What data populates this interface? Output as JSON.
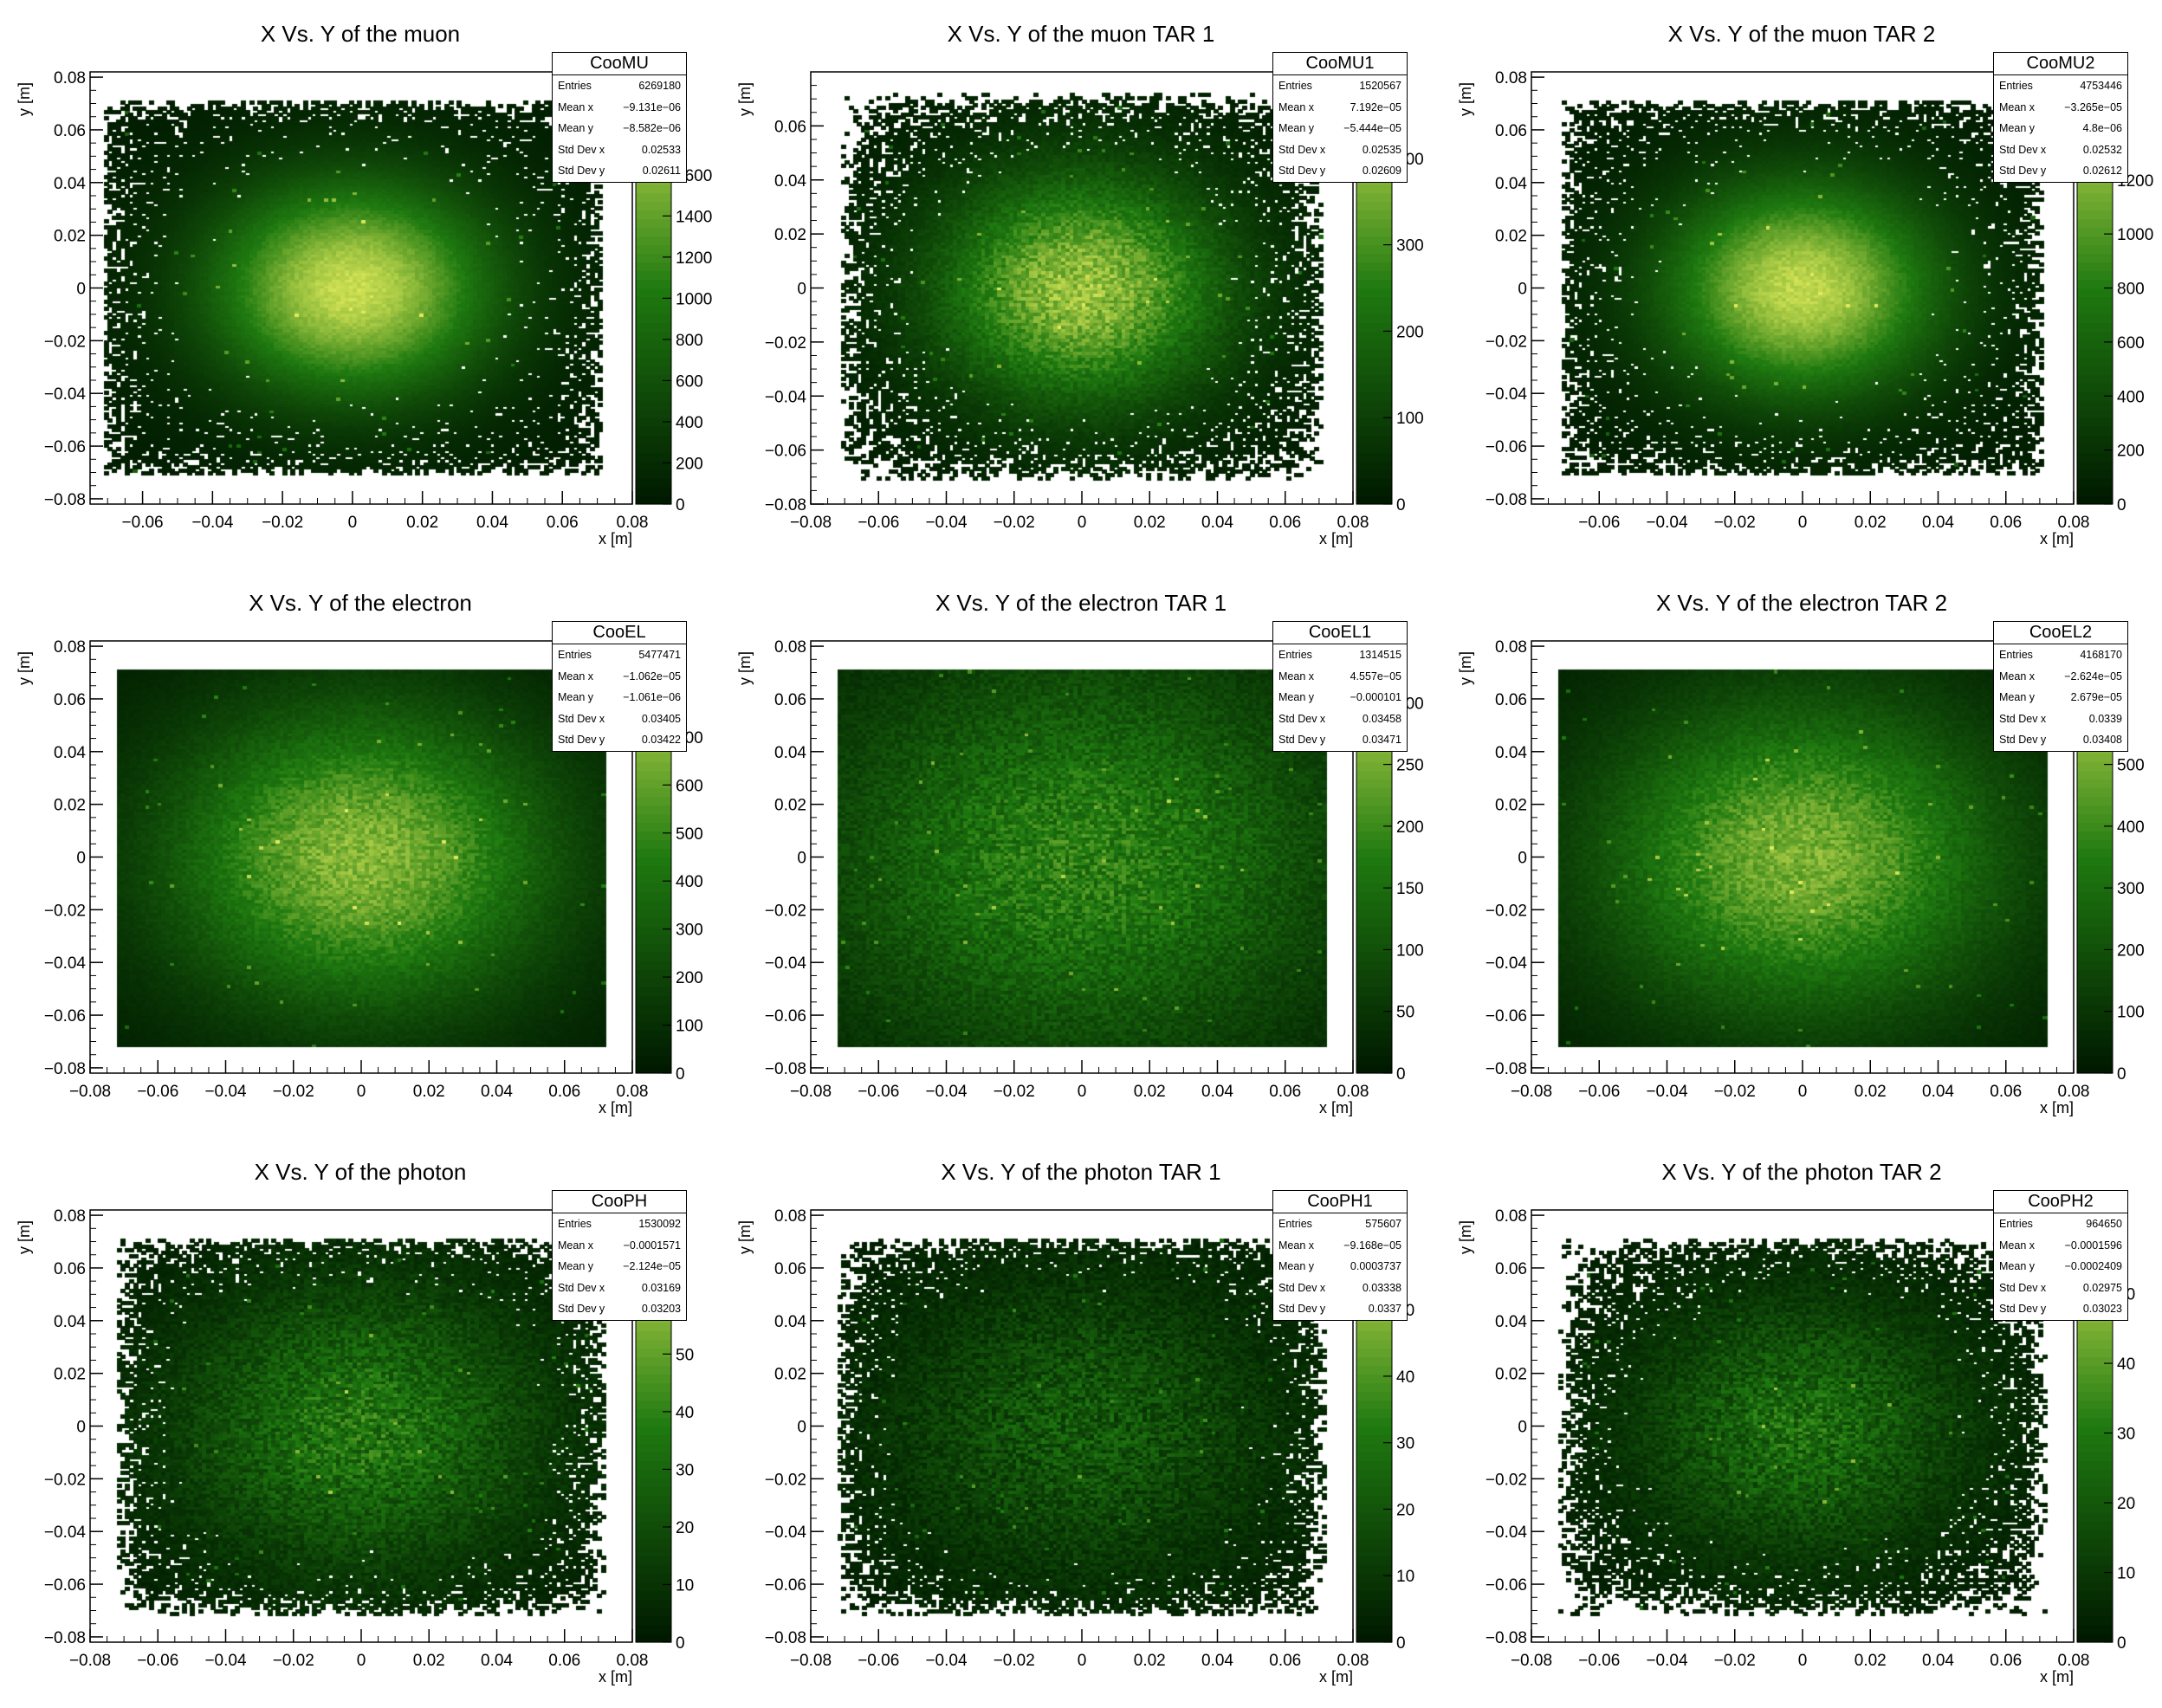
{
  "colors": {
    "low": "#001a00",
    "mid": "#1f7a10",
    "high": "#e0ea5a",
    "frame": "#000000"
  },
  "chart_data": [
    {
      "type": "heatmap",
      "title": "X  Vs. Y of the muon",
      "hist_name": "CooMU",
      "xlabel": "x [m]",
      "ylabel": "y [m]",
      "xlim": [
        -0.075,
        0.08
      ],
      "ylim": [
        -0.082,
        0.082
      ],
      "x_ticks": [
        "−0.06",
        "−0.04",
        "−0.02",
        "0",
        "0.02",
        "0.04",
        "0.06",
        "0.08"
      ],
      "y_ticks": [
        "0.08",
        "0.06",
        "0.04",
        "0.02",
        "0",
        "−0.02",
        "−0.04",
        "−0.06",
        "−0.08"
      ],
      "z_ticks": [
        "0",
        "200",
        "400",
        "600",
        "800",
        "1000",
        "1200",
        "1400",
        "1600"
      ],
      "z_max": 2100,
      "stats": [
        [
          "Entries",
          "6269180"
        ],
        [
          "Mean x",
          "−9.131e−06"
        ],
        [
          "Mean y",
          "−8.582e−06"
        ],
        [
          "Std Dev x",
          "0.02533"
        ],
        [
          "Std Dev y",
          "0.02611"
        ]
      ]
    },
    {
      "type": "heatmap",
      "title": "X  Vs. Y of the muon TAR 1",
      "hist_name": "CooMU1",
      "xlabel": "x [m]",
      "ylabel": "y [m]",
      "xlim": [
        -0.08,
        0.08
      ],
      "ylim": [
        -0.08,
        0.08
      ],
      "x_ticks": [
        "−0.08",
        "−0.06",
        "−0.04",
        "−0.02",
        "0",
        "0.02",
        "0.04",
        "0.06",
        "0.08"
      ],
      "y_ticks": [
        "0.06",
        "0.04",
        "0.02",
        "0",
        "−0.02",
        "−0.04",
        "−0.06",
        "−0.08"
      ],
      "z_ticks": [
        "0",
        "100",
        "200",
        "300",
        "400"
      ],
      "z_max": 500,
      "stats": [
        [
          "Entries",
          "1520567"
        ],
        [
          "Mean x",
          "7.192e−05"
        ],
        [
          "Mean y",
          "−5.444e−05"
        ],
        [
          "Std Dev x",
          "0.02535"
        ],
        [
          "Std Dev y",
          "0.02609"
        ]
      ]
    },
    {
      "type": "heatmap",
      "title": "X  Vs. Y of the muon TAR 2",
      "hist_name": "CooMU2",
      "xlabel": "x [m]",
      "ylabel": "y [m]",
      "xlim": [
        -0.08,
        0.08
      ],
      "ylim": [
        -0.082,
        0.082
      ],
      "x_ticks": [
        "−0.06",
        "−0.04",
        "−0.02",
        "0",
        "0.02",
        "0.04",
        "0.06",
        "0.08"
      ],
      "y_ticks": [
        "0.08",
        "0.06",
        "0.04",
        "0.02",
        "0",
        "−0.02",
        "−0.04",
        "−0.06",
        "−0.08"
      ],
      "z_ticks": [
        "0",
        "200",
        "400",
        "600",
        "800",
        "1000",
        "1200"
      ],
      "z_max": 1600,
      "stats": [
        [
          "Entries",
          "4753446"
        ],
        [
          "Mean x",
          "−3.265e−05"
        ],
        [
          "Mean y",
          "4.8e−06"
        ],
        [
          "Std Dev x",
          "0.02532"
        ],
        [
          "Std Dev y",
          "0.02612"
        ]
      ]
    },
    {
      "type": "heatmap",
      "title": "X  Vs. Y of the electron",
      "hist_name": "CooEL",
      "xlabel": "x [m]",
      "ylabel": "y [m]",
      "xlim": [
        -0.08,
        0.08
      ],
      "ylim": [
        -0.082,
        0.082
      ],
      "x_ticks": [
        "−0.08",
        "−0.06",
        "−0.04",
        "−0.02",
        "0",
        "0.02",
        "0.04",
        "0.06",
        "0.08"
      ],
      "y_ticks": [
        "0.08",
        "0.06",
        "0.04",
        "0.02",
        "0",
        "−0.02",
        "−0.04",
        "−0.06",
        "−0.08"
      ],
      "z_ticks": [
        "0",
        "100",
        "200",
        "300",
        "400",
        "500",
        "600",
        "700"
      ],
      "z_max": 900,
      "stats": [
        [
          "Entries",
          "5477471"
        ],
        [
          "Mean x",
          "−1.062e−05"
        ],
        [
          "Mean y",
          "−1.061e−06"
        ],
        [
          "Std Dev x",
          "0.03405"
        ],
        [
          "Std Dev y",
          "0.03422"
        ]
      ]
    },
    {
      "type": "heatmap",
      "title": "X  Vs. Y of the electron TAR 1",
      "hist_name": "CooEL1",
      "xlabel": "x [m]",
      "ylabel": "y [m]",
      "xlim": [
        -0.08,
        0.08
      ],
      "ylim": [
        -0.082,
        0.082
      ],
      "x_ticks": [
        "−0.08",
        "−0.06",
        "−0.04",
        "−0.02",
        "0",
        "0.02",
        "0.04",
        "0.06",
        "0.08"
      ],
      "y_ticks": [
        "0.08",
        "0.06",
        "0.04",
        "0.02",
        "0",
        "−0.02",
        "−0.04",
        "−0.06",
        "−0.08"
      ],
      "z_ticks": [
        "0",
        "50",
        "100",
        "150",
        "200",
        "250",
        "300"
      ],
      "z_max": 350,
      "stats": [
        [
          "Entries",
          "1314515"
        ],
        [
          "Mean x",
          "4.557e−05"
        ],
        [
          "Mean y",
          "−0.000101"
        ],
        [
          "Std Dev x",
          "0.03458"
        ],
        [
          "Std Dev y",
          "0.03471"
        ]
      ]
    },
    {
      "type": "heatmap",
      "title": "X  Vs. Y of the electron TAR 2",
      "hist_name": "CooEL2",
      "xlabel": "x [m]",
      "ylabel": "y [m]",
      "xlim": [
        -0.08,
        0.08
      ],
      "ylim": [
        -0.082,
        0.082
      ],
      "x_ticks": [
        "−0.08",
        "−0.06",
        "−0.04",
        "−0.02",
        "0",
        "0.02",
        "0.04",
        "0.06",
        "0.08"
      ],
      "y_ticks": [
        "0.08",
        "0.06",
        "0.04",
        "0.02",
        "0",
        "−0.02",
        "−0.04",
        "−0.06",
        "−0.08"
      ],
      "z_ticks": [
        "0",
        "100",
        "200",
        "300",
        "400",
        "500"
      ],
      "z_max": 700,
      "stats": [
        [
          "Entries",
          "4168170"
        ],
        [
          "Mean x",
          "−2.624e−05"
        ],
        [
          "Mean y",
          "2.679e−05"
        ],
        [
          "Std Dev x",
          "0.0339"
        ],
        [
          "Std Dev y",
          "0.03408"
        ]
      ]
    },
    {
      "type": "heatmap",
      "title": "X  Vs. Y of the photon",
      "hist_name": "CooPH",
      "xlabel": "x [m]",
      "ylabel": "y [m]",
      "xlim": [
        -0.08,
        0.08
      ],
      "ylim": [
        -0.082,
        0.082
      ],
      "x_ticks": [
        "−0.08",
        "−0.06",
        "−0.04",
        "−0.02",
        "0",
        "0.02",
        "0.04",
        "0.06",
        "0.08"
      ],
      "y_ticks": [
        "0.08",
        "0.06",
        "0.04",
        "0.02",
        "0",
        "−0.02",
        "−0.04",
        "−0.06",
        "−0.08"
      ],
      "z_ticks": [
        "0",
        "10",
        "20",
        "30",
        "40",
        "50"
      ],
      "z_max": 75,
      "stats": [
        [
          "Entries",
          "1530092"
        ],
        [
          "Mean x",
          "−0.0001571"
        ],
        [
          "Mean y",
          "−2.124e−05"
        ],
        [
          "Std Dev x",
          "0.03169"
        ],
        [
          "Std Dev y",
          "0.03203"
        ]
      ]
    },
    {
      "type": "heatmap",
      "title": "X  Vs. Y of the photon TAR 1",
      "hist_name": "CooPH1",
      "xlabel": "x [m]",
      "ylabel": "y [m]",
      "xlim": [
        -0.08,
        0.08
      ],
      "ylim": [
        -0.082,
        0.082
      ],
      "x_ticks": [
        "−0.08",
        "−0.06",
        "−0.04",
        "−0.02",
        "0",
        "0.02",
        "0.04",
        "0.06",
        "0.08"
      ],
      "y_ticks": [
        "0.08",
        "0.06",
        "0.04",
        "0.02",
        "0",
        "−0.02",
        "−0.04",
        "−0.06",
        "−0.08"
      ],
      "z_ticks": [
        "0",
        "10",
        "20",
        "30",
        "40",
        "50"
      ],
      "z_max": 65,
      "stats": [
        [
          "Entries",
          "575607"
        ],
        [
          "Mean x",
          "−9.168e−05"
        ],
        [
          "Mean y",
          "0.0003737"
        ],
        [
          "Std Dev x",
          "0.03338"
        ],
        [
          "Std Dev y",
          "0.0337"
        ]
      ]
    },
    {
      "type": "heatmap",
      "title": "X  Vs. Y of the photon TAR 2",
      "hist_name": "CooPH2",
      "xlabel": "x [m]",
      "ylabel": "y [m]",
      "xlim": [
        -0.08,
        0.08
      ],
      "ylim": [
        -0.082,
        0.082
      ],
      "x_ticks": [
        "−0.08",
        "−0.06",
        "−0.04",
        "−0.02",
        "0",
        "0.02",
        "0.04",
        "0.06",
        "0.08"
      ],
      "y_ticks": [
        "0.08",
        "0.06",
        "0.04",
        "0.02",
        "0",
        "−0.02",
        "−0.04",
        "−0.06",
        "−0.08"
      ],
      "z_ticks": [
        "0",
        "10",
        "20",
        "30",
        "40",
        "50"
      ],
      "z_max": 62,
      "stats": [
        [
          "Entries",
          "964650"
        ],
        [
          "Mean x",
          "−0.0001596"
        ],
        [
          "Mean y",
          "−0.0002409"
        ],
        [
          "Std Dev x",
          "0.02975"
        ],
        [
          "Std Dev y",
          "0.03023"
        ]
      ]
    }
  ]
}
